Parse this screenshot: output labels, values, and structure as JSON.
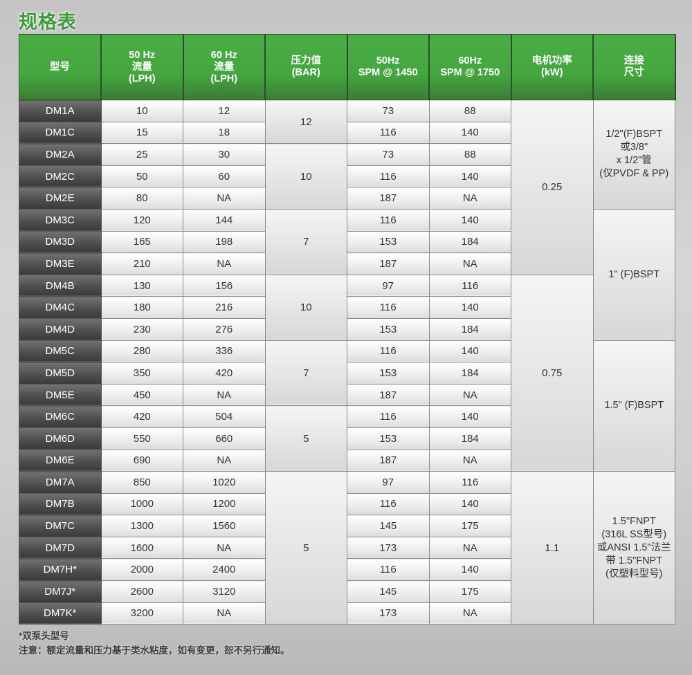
{
  "title": "规格表",
  "headers": [
    "型号",
    "50 Hz\n流量\n(LPH)",
    "60 Hz\n流量\n(LPH)",
    "压力值\n(BAR)",
    "50Hz\nSPM @ 1450",
    "60Hz\nSPM @ 1750",
    "电机功率\n(kW)",
    "连接\n尺寸"
  ],
  "rows": [
    {
      "model": "DM1A",
      "lph50": "10",
      "lph60": "12",
      "spm50": "73",
      "spm60": "88"
    },
    {
      "model": "DM1C",
      "lph50": "15",
      "lph60": "18",
      "spm50": "116",
      "spm60": "140"
    },
    {
      "model": "DM2A",
      "lph50": "25",
      "lph60": "30",
      "spm50": "73",
      "spm60": "88"
    },
    {
      "model": "DM2C",
      "lph50": "50",
      "lph60": "60",
      "spm50": "116",
      "spm60": "140"
    },
    {
      "model": "DM2E",
      "lph50": "80",
      "lph60": "NA",
      "spm50": "187",
      "spm60": "NA"
    },
    {
      "model": "DM3C",
      "lph50": "120",
      "lph60": "144",
      "spm50": "116",
      "spm60": "140"
    },
    {
      "model": "DM3D",
      "lph50": "165",
      "lph60": "198",
      "spm50": "153",
      "spm60": "184"
    },
    {
      "model": "DM3E",
      "lph50": "210",
      "lph60": "NA",
      "spm50": "187",
      "spm60": "NA"
    },
    {
      "model": "DM4B",
      "lph50": "130",
      "lph60": "156",
      "spm50": "97",
      "spm60": "116"
    },
    {
      "model": "DM4C",
      "lph50": "180",
      "lph60": "216",
      "spm50": "116",
      "spm60": "140"
    },
    {
      "model": "DM4D",
      "lph50": "230",
      "lph60": "276",
      "spm50": "153",
      "spm60": "184"
    },
    {
      "model": "DM5C",
      "lph50": "280",
      "lph60": "336",
      "spm50": "116",
      "spm60": "140"
    },
    {
      "model": "DM5D",
      "lph50": "350",
      "lph60": "420",
      "spm50": "153",
      "spm60": "184"
    },
    {
      "model": "DM5E",
      "lph50": "450",
      "lph60": "NA",
      "spm50": "187",
      "spm60": "NA"
    },
    {
      "model": "DM6C",
      "lph50": "420",
      "lph60": "504",
      "spm50": "116",
      "spm60": "140"
    },
    {
      "model": "DM6D",
      "lph50": "550",
      "lph60": "660",
      "spm50": "153",
      "spm60": "184"
    },
    {
      "model": "DM6E",
      "lph50": "690",
      "lph60": "NA",
      "spm50": "187",
      "spm60": "NA"
    },
    {
      "model": "DM7A",
      "lph50": "850",
      "lph60": "1020",
      "spm50": "97",
      "spm60": "116"
    },
    {
      "model": "DM7B",
      "lph50": "1000",
      "lph60": "1200",
      "spm50": "116",
      "spm60": "140"
    },
    {
      "model": "DM7C",
      "lph50": "1300",
      "lph60": "1560",
      "spm50": "145",
      "spm60": "175"
    },
    {
      "model": "DM7D",
      "lph50": "1600",
      "lph60": "NA",
      "spm50": "173",
      "spm60": "NA"
    },
    {
      "model": "DM7H*",
      "lph50": "2000",
      "lph60": "2400",
      "spm50": "116",
      "spm60": "140"
    },
    {
      "model": "DM7J*",
      "lph50": "2600",
      "lph60": "3120",
      "spm50": "145",
      "spm60": "175"
    },
    {
      "model": "DM7K*",
      "lph50": "3200",
      "lph60": "NA",
      "spm50": "173",
      "spm60": "NA"
    }
  ],
  "pressure_groups": [
    {
      "value": "12",
      "rows": 2
    },
    {
      "value": "10",
      "rows": 3
    },
    {
      "value": "7",
      "rows": 3
    },
    {
      "value": "10",
      "rows": 3
    },
    {
      "value": "7",
      "rows": 3
    },
    {
      "value": "5",
      "rows": 3
    },
    {
      "value": "5",
      "rows": 7
    }
  ],
  "power_groups": [
    {
      "value": "0.25",
      "rows": 8
    },
    {
      "value": "0.75",
      "rows": 9
    },
    {
      "value": "1.1",
      "rows": 7
    }
  ],
  "connection_groups": [
    {
      "value": "1/2\"(F)BSPT\n或3/8\"\nx 1/2\"管\n(仅PVDF & PP)",
      "rows": 5
    },
    {
      "value": "1\" (F)BSPT",
      "rows": 6
    },
    {
      "value": "1.5\" (F)BSPT",
      "rows": 6
    },
    {
      "value": "1.5\"FNPT\n(316L SS型号)\n或ANSI 1.5\"法兰\n带 1.5\"FNPT\n(仅塑料型号)",
      "rows": 7
    }
  ],
  "notes": {
    "footnote": "*双泵头型号",
    "disclaimer": "注意：额定流量和压力基于类水粘度，如有变更，恕不另行通知。"
  },
  "colors": {
    "header_green": "#45a640",
    "title_green": "#3f9a3b",
    "model_cell": "#4c4c4c"
  }
}
